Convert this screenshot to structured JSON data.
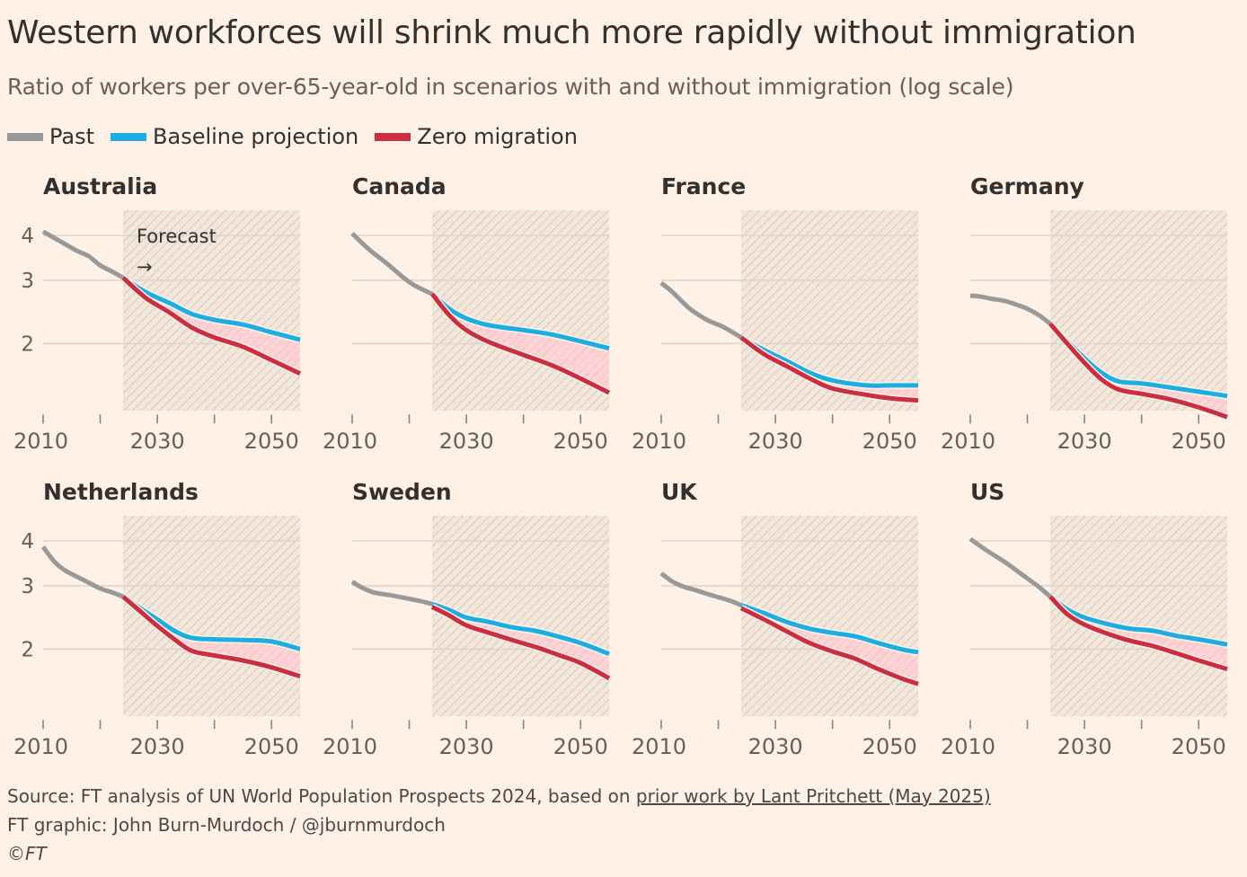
{
  "title": "Western workforces will shrink much more rapidly without immigration",
  "subtitle": "Ratio of workers per over-65-year-old in scenarios with and without immigration (log scale)",
  "legend": [
    {
      "label": "Past",
      "color": "#999999"
    },
    {
      "label": "Baseline projection",
      "color": "#1aaee3"
    },
    {
      "label": "Zero migration",
      "color": "#cc2e41"
    }
  ],
  "forecast_label": "Forecast",
  "forecast_arrow": "→",
  "footer": {
    "source_prefix": "Source: FT analysis of UN World Population Prospects 2024, based on ",
    "source_link": "prior work by Lant Pritchett (May 2025)",
    "credit": "FT graphic: John Burn-Murdoch / @jburnmurdoch",
    "copyright": "©FT"
  },
  "chart_data": {
    "type": "line",
    "title": "Western workforces will shrink much more rapidly without immigration",
    "ylabel": "Ratio of workers per over-65-year-old (log scale)",
    "yscale": "log",
    "ylim": [
      1.3,
      4.7
    ],
    "yticks": [
      2,
      3,
      4
    ],
    "xlim": [
      2010,
      2055
    ],
    "xticks": [
      2010,
      2020,
      2030,
      2040,
      2050
    ],
    "xtick_labels": [
      "2010",
      "2030",
      "2050"
    ],
    "forecast_start": 2024,
    "grid": true,
    "legend_position": "top-left",
    "panels": [
      {
        "name": "Australia",
        "past": {
          "x": [
            2010,
            2013,
            2016,
            2018,
            2020,
            2022,
            2024
          ],
          "y": [
            4.1,
            3.85,
            3.62,
            3.5,
            3.3,
            3.18,
            3.05
          ]
        },
        "baseline": {
          "x": [
            2024,
            2028,
            2032,
            2036,
            2040,
            2045,
            2050,
            2055
          ],
          "y": [
            3.05,
            2.78,
            2.6,
            2.42,
            2.33,
            2.26,
            2.15,
            2.05
          ]
        },
        "zero": {
          "x": [
            2024,
            2028,
            2032,
            2036,
            2040,
            2045,
            2050,
            2055
          ],
          "y": [
            3.05,
            2.68,
            2.45,
            2.22,
            2.08,
            1.96,
            1.8,
            1.65
          ]
        }
      },
      {
        "name": "Canada",
        "past": {
          "x": [
            2010,
            2013,
            2016,
            2019,
            2021,
            2024
          ],
          "y": [
            4.05,
            3.65,
            3.35,
            3.05,
            2.9,
            2.75
          ]
        },
        "baseline": {
          "x": [
            2024,
            2027,
            2030,
            2034,
            2040,
            2045,
            2050,
            2055
          ],
          "y": [
            2.75,
            2.5,
            2.35,
            2.25,
            2.18,
            2.12,
            2.03,
            1.94
          ]
        },
        "zero": {
          "x": [
            2024,
            2027,
            2030,
            2034,
            2040,
            2045,
            2050,
            2055
          ],
          "y": [
            2.75,
            2.4,
            2.18,
            2.02,
            1.86,
            1.74,
            1.6,
            1.46
          ]
        }
      },
      {
        "name": "France",
        "past": {
          "x": [
            2010,
            2012,
            2015,
            2018,
            2021,
            2024
          ],
          "y": [
            2.95,
            2.78,
            2.5,
            2.33,
            2.22,
            2.08
          ]
        },
        "baseline": {
          "x": [
            2024,
            2028,
            2032,
            2036,
            2040,
            2046,
            2050,
            2055
          ],
          "y": [
            2.08,
            1.92,
            1.79,
            1.66,
            1.58,
            1.53,
            1.53,
            1.53
          ]
        },
        "zero": {
          "x": [
            2024,
            2028,
            2032,
            2036,
            2040,
            2046,
            2050,
            2055
          ],
          "y": [
            2.08,
            1.87,
            1.73,
            1.6,
            1.5,
            1.44,
            1.41,
            1.39
          ]
        }
      },
      {
        "name": "Germany",
        "past": {
          "x": [
            2010,
            2012,
            2014,
            2016,
            2018,
            2020,
            2022,
            2024
          ],
          "y": [
            2.72,
            2.7,
            2.66,
            2.63,
            2.57,
            2.5,
            2.4,
            2.27
          ]
        },
        "baseline": {
          "x": [
            2024,
            2027,
            2030,
            2033,
            2036,
            2040,
            2045,
            2050,
            2055
          ],
          "y": [
            2.27,
            2.03,
            1.82,
            1.66,
            1.57,
            1.55,
            1.51,
            1.47,
            1.43
          ]
        },
        "zero": {
          "x": [
            2024,
            2027,
            2030,
            2033,
            2036,
            2040,
            2045,
            2050,
            2055
          ],
          "y": [
            2.27,
            2.0,
            1.77,
            1.59,
            1.49,
            1.45,
            1.4,
            1.33,
            1.25
          ]
        }
      },
      {
        "name": "Netherlands",
        "past": {
          "x": [
            2010,
            2012,
            2014,
            2017,
            2020,
            2022,
            2024
          ],
          "y": [
            3.85,
            3.5,
            3.3,
            3.12,
            2.95,
            2.88,
            2.8
          ]
        },
        "baseline": {
          "x": [
            2024,
            2027,
            2030,
            2033,
            2036,
            2040,
            2045,
            2050,
            2055
          ],
          "y": [
            2.8,
            2.6,
            2.42,
            2.25,
            2.15,
            2.13,
            2.12,
            2.1,
            2.0
          ]
        },
        "zero": {
          "x": [
            2024,
            2027,
            2030,
            2033,
            2036,
            2040,
            2045,
            2050,
            2055
          ],
          "y": [
            2.8,
            2.55,
            2.32,
            2.13,
            1.98,
            1.92,
            1.86,
            1.78,
            1.68
          ]
        }
      },
      {
        "name": "Sweden",
        "past": {
          "x": [
            2010,
            2012,
            2014,
            2017,
            2020,
            2022,
            2024
          ],
          "y": [
            3.08,
            2.95,
            2.87,
            2.82,
            2.76,
            2.72,
            2.67
          ]
        },
        "baseline": {
          "x": [
            2024,
            2027,
            2030,
            2034,
            2038,
            2042,
            2046,
            2050,
            2055
          ],
          "y": [
            2.67,
            2.57,
            2.45,
            2.38,
            2.3,
            2.25,
            2.17,
            2.08,
            1.94
          ]
        },
        "zero": {
          "x": [
            2024,
            2027,
            2030,
            2034,
            2038,
            2042,
            2046,
            2050,
            2055
          ],
          "y": [
            2.62,
            2.48,
            2.33,
            2.22,
            2.12,
            2.03,
            1.93,
            1.83,
            1.66
          ]
        }
      },
      {
        "name": "UK",
        "past": {
          "x": [
            2010,
            2012,
            2014,
            2016,
            2018,
            2020,
            2022,
            2024
          ],
          "y": [
            3.25,
            3.08,
            2.98,
            2.92,
            2.85,
            2.79,
            2.73,
            2.65
          ]
        },
        "baseline": {
          "x": [
            2024,
            2028,
            2032,
            2036,
            2040,
            2044,
            2048,
            2052,
            2055
          ],
          "y": [
            2.65,
            2.52,
            2.38,
            2.28,
            2.22,
            2.17,
            2.08,
            2.0,
            1.96
          ]
        },
        "zero": {
          "x": [
            2024,
            2028,
            2032,
            2036,
            2040,
            2044,
            2048,
            2052,
            2055
          ],
          "y": [
            2.6,
            2.42,
            2.24,
            2.08,
            1.97,
            1.88,
            1.76,
            1.66,
            1.6
          ]
        }
      },
      {
        "name": "US",
        "past": {
          "x": [
            2010,
            2013,
            2016,
            2019,
            2022,
            2024
          ],
          "y": [
            4.05,
            3.75,
            3.5,
            3.23,
            2.98,
            2.8
          ]
        },
        "baseline": {
          "x": [
            2024,
            2027,
            2030,
            2034,
            2038,
            2042,
            2046,
            2050,
            2055
          ],
          "y": [
            2.8,
            2.58,
            2.45,
            2.35,
            2.28,
            2.25,
            2.18,
            2.13,
            2.06
          ]
        },
        "zero": {
          "x": [
            2024,
            2027,
            2030,
            2034,
            2038,
            2042,
            2046,
            2050,
            2055
          ],
          "y": [
            2.8,
            2.5,
            2.34,
            2.21,
            2.11,
            2.04,
            1.95,
            1.86,
            1.76
          ]
        }
      }
    ]
  }
}
